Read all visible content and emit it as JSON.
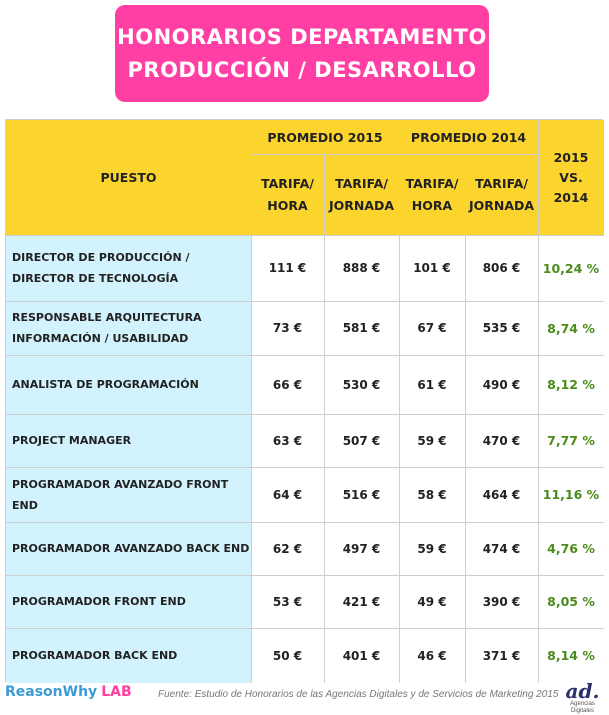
{
  "title": {
    "line1": "HONORARIOS DEPARTAMENTO",
    "line2": "PRODUCCIÓN / DESARROLLO"
  },
  "header": {
    "puesto": "PUESTO",
    "promedio_2015": "PROMEDIO 2015",
    "promedio_2014": "PROMEDIO 2014",
    "tarifa_hora": [
      "TARIFA/",
      "HORA"
    ],
    "tarifa_jornada": [
      "TARIFA/",
      "JORNADA"
    ],
    "comparison": [
      "2015",
      "VS.",
      "2014"
    ]
  },
  "rows": [
    {
      "puesto": [
        "DIRECTOR DE PRODUCCIÓN /",
        "DIRECTOR DE TECNOLOGÍA"
      ],
      "h2015": "111 €",
      "j2015": "888 €",
      "h2014": "101 €",
      "j2014": "806 €",
      "pct": "10,24 %"
    },
    {
      "puesto": [
        "RESPONSABLE ARQUITECTURA",
        "INFORMACIÓN / USABILIDAD"
      ],
      "h2015": "73 €",
      "j2015": "581 €",
      "h2014": "67 €",
      "j2014": "535 €",
      "pct": "8,74 %"
    },
    {
      "puesto": [
        "ANALISTA DE PROGRAMACIÓN"
      ],
      "h2015": "66 €",
      "j2015": "530 €",
      "h2014": "61 €",
      "j2014": "490 €",
      "pct": "8,12 %"
    },
    {
      "puesto": [
        "PROJECT MANAGER"
      ],
      "h2015": "63 €",
      "j2015": "507 €",
      "h2014": "59 €",
      "j2014": "470 €",
      "pct": "7,77 %"
    },
    {
      "puesto": [
        "PROGRAMADOR AVANZADO FRONT END"
      ],
      "h2015": "64 €",
      "j2015": "516 €",
      "h2014": "58 €",
      "j2014": "464 €",
      "pct": "11,16 %"
    },
    {
      "puesto": [
        "PROGRAMADOR AVANZADO BACK END"
      ],
      "h2015": "62 €",
      "j2015": "497 €",
      "h2014": "59 €",
      "j2014": "474 €",
      "pct": "4,76 %"
    },
    {
      "puesto": [
        "PROGRAMADOR FRONT END"
      ],
      "h2015": "53 €",
      "j2015": "421 €",
      "h2014": "49 €",
      "j2014": "390 €",
      "pct": "8,05 %"
    },
    {
      "puesto": [
        "PROGRAMADOR BACK END"
      ],
      "h2015": "50 €",
      "j2015": "401 €",
      "h2014": "46 €",
      "j2014": "371 €",
      "pct": "8,14 %"
    }
  ],
  "footer": {
    "brand": "ReasonWhy",
    "brand_suffix": "LAB",
    "source": "Fuente: Estudio de Honorarios de las Agencias Digitales y de Servicios de Marketing 2015",
    "ad_mark": "ad.",
    "ad_sub": "Agencias Digitales"
  },
  "colors": {
    "title_bg": "#ff3fa3",
    "header_bg": "#fbd52d",
    "puesto_bg": "#d2f2fd",
    "pct_text": "#4b8a1b",
    "brand_blue": "#3b9bd6"
  }
}
